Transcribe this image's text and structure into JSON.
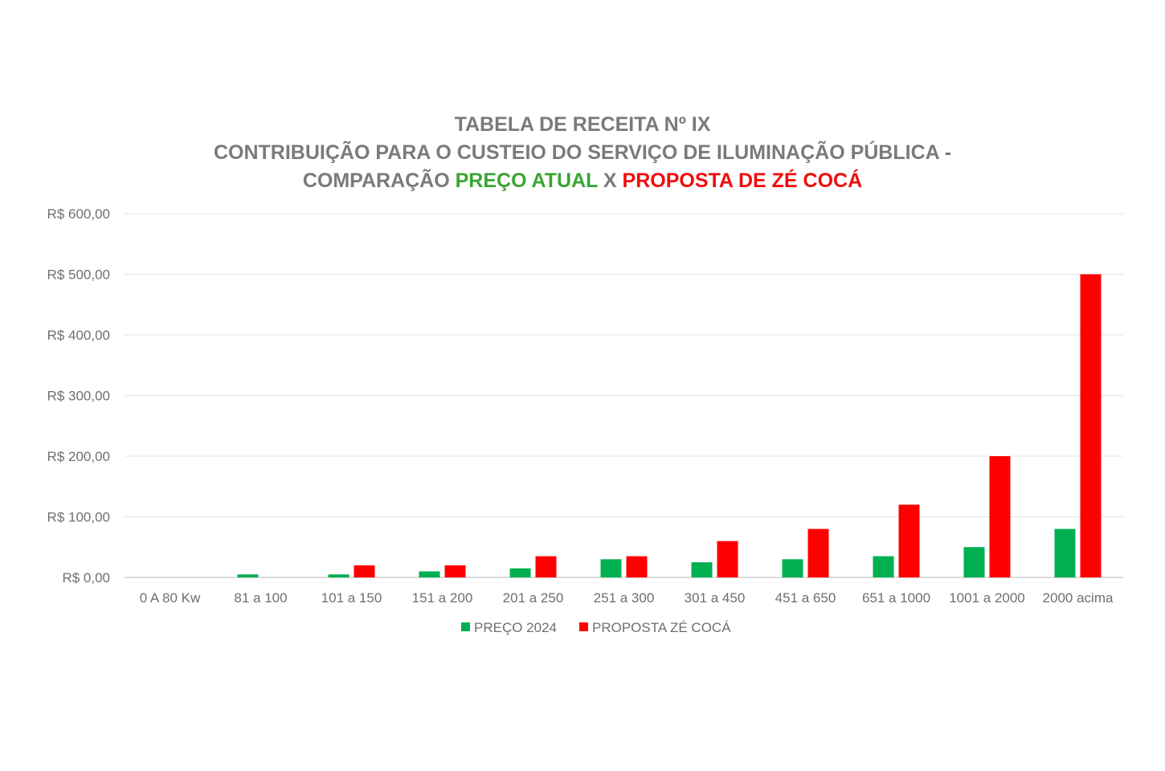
{
  "chart_data": {
    "type": "bar",
    "title": {
      "line1": "TABELA DE RECEITA Nº IX",
      "line2": "CONTRIBUIÇÃO PARA O CUSTEIO DO SERVIÇO DE ILUMINAÇÃO PÚBLICA -",
      "line3_prefix": "COMPARAÇÃO ",
      "line3_green": "PREÇO ATUAL",
      "line3_mid": " X ",
      "line3_red": "PROPOSTA DE ZÉ COCÁ"
    },
    "categories": [
      "0 A 80 Kw",
      "81 a 100",
      "101 a 150",
      "151 a 200",
      "201 a 250",
      "251 a 300",
      "301 a 450",
      "451 a 650",
      "651 a 1000",
      "1001 a 2000",
      "2000 acima"
    ],
    "series": [
      {
        "name": "PREÇO 2024",
        "color": "#00b050",
        "values": [
          0,
          5,
          5,
          10,
          15,
          30,
          25,
          30,
          35,
          50,
          80
        ]
      },
      {
        "name": "PROPOSTA ZÉ COCÁ",
        "color": "#ff0000",
        "values": [
          0,
          0,
          20,
          20,
          35,
          35,
          60,
          80,
          120,
          200,
          500
        ]
      }
    ],
    "ylim": [
      0,
      600
    ],
    "yticks": [
      {
        "value": 0,
        "label": "R$ 0,00"
      },
      {
        "value": 100,
        "label": "R$ 100,00"
      },
      {
        "value": 200,
        "label": "R$ 200,00"
      },
      {
        "value": 300,
        "label": "R$ 300,00"
      },
      {
        "value": 400,
        "label": "R$ 400,00"
      },
      {
        "value": 500,
        "label": "R$ 500,00"
      },
      {
        "value": 600,
        "label": "R$ 600,00"
      }
    ],
    "grid": true,
    "legend": "bottom"
  }
}
